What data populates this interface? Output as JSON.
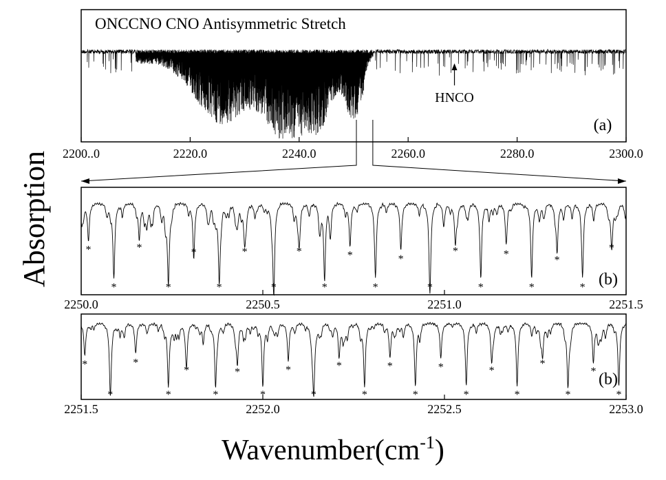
{
  "figure": {
    "ylabel": "Absorption",
    "xlabel": "Wavenumber(cm",
    "xlabel_sup": "-1",
    "xlabel_close": ")"
  },
  "chart_data": [
    {
      "type": "line",
      "panel_label": "(a)",
      "title": "ONCCNO CNO Antisymmetric Stretch",
      "xlim": [
        2200.0,
        2300.0
      ],
      "xticks": [
        2200.0,
        2220.0,
        2240.0,
        2260.0,
        2280.0,
        2300.0
      ],
      "xtick_labels": [
        "2200..0",
        "2220.0",
        "2240.0",
        "2260.0",
        "2280.0",
        "2300.0"
      ],
      "annotation": {
        "text": "HNCO",
        "x": 2268.5
      },
      "zoom_window": [
        2250.0,
        2251.5
      ],
      "series": [
        {
          "style": "dense absorption band envelope; deepest near 2227, 2238-2241 and 2249-2251; baseline returns near 2255"
        }
      ]
    },
    {
      "type": "line",
      "panel_label": "(b)",
      "xlim": [
        2250.0,
        2251.5
      ],
      "xticks": [
        2250.0,
        2250.5,
        2251.0,
        2251.5
      ],
      "xtick_labels": [
        "2250.0",
        "2250.5",
        "2251.0",
        "2251.5"
      ],
      "marker": "*",
      "starred_lines": [
        2250.02,
        2250.09,
        2250.16,
        2250.24,
        2250.31,
        2250.38,
        2250.45,
        2250.53,
        2250.6,
        2250.67,
        2250.74,
        2250.81,
        2250.88,
        2250.96,
        2251.03,
        2251.1,
        2251.17,
        2251.24,
        2251.31,
        2251.38,
        2251.46
      ]
    },
    {
      "type": "line",
      "panel_label": "(b)",
      "xlim": [
        2251.5,
        2253.0
      ],
      "xticks": [
        2251.5,
        2252.0,
        2252.5,
        2253.0
      ],
      "xtick_labels": [
        "2251.5",
        "2252.0",
        "2252.5",
        "2253.0"
      ],
      "marker": "*",
      "starred_lines": [
        2251.51,
        2251.58,
        2251.65,
        2251.74,
        2251.79,
        2251.87,
        2251.93,
        2252.0,
        2252.07,
        2252.14,
        2252.21,
        2252.28,
        2252.35,
        2252.42,
        2252.49,
        2252.56,
        2252.63,
        2252.7,
        2252.77,
        2252.84,
        2252.91,
        2252.98
      ]
    }
  ]
}
